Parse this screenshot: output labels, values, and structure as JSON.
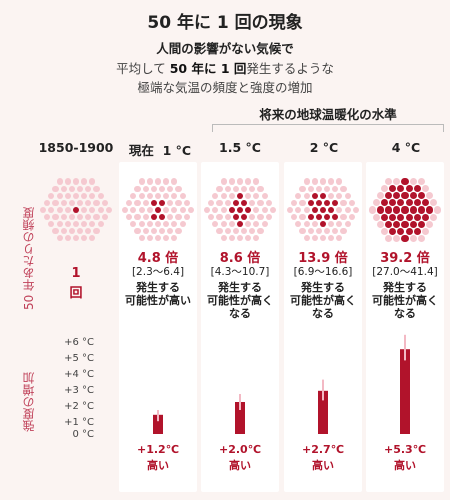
{
  "title": "50 年に 1 回の現象",
  "subtitle": {
    "line1": "人間の影響がない気候で",
    "line2_pre": "平均して ",
    "line2_bold": "50 年に 1 回",
    "line2_post": "発生するような",
    "line3": "極端な気温の頻度と強度の増加"
  },
  "future_label": "将来の地球温暖化の水準",
  "y_label_freq": "50 年あたりの頻度",
  "y_label_int": "強度の増加",
  "colors": {
    "accent": "#b1132b",
    "dot_light": "#f5c9d0",
    "background": "#fbf4f2"
  },
  "chart_data": {
    "type": "bar",
    "categories": [
      "1850-1900",
      "現在 1 °C",
      "1.5 °C",
      "2 °C",
      "4 °C"
    ],
    "frequency": {
      "values": [
        1,
        4.8,
        8.6,
        13.9,
        39.2
      ],
      "labels": [
        "1",
        "4.8 倍",
        "8.6 倍",
        "13.9 倍",
        "39.2 倍"
      ],
      "ranges": [
        "",
        "[2.3～6.4]",
        "[4.3～10.7]",
        "[6.9～16.6]",
        "[27.0～41.4]"
      ],
      "unit_label": "回"
    },
    "likelihood": [
      "",
      "発生する\n可能性が高い",
      "発生する\n可能性が高く\nなる",
      "発生する\n可能性が高く\nなる",
      "発生する\n可能性が高く\nなる"
    ],
    "intensity": {
      "values": [
        0,
        1.2,
        2.0,
        2.7,
        5.3
      ],
      "low": [
        0,
        0.8,
        1.5,
        2.1,
        4.6
      ],
      "high": [
        0,
        1.5,
        2.5,
        3.4,
        6.2
      ],
      "labels": [
        "",
        "+1.2℃",
        "+2.0℃",
        "+2.7℃",
        "+5.3℃"
      ],
      "suffix": "高い",
      "ylim": [
        0,
        6
      ],
      "ticks": [
        "+6 °C",
        "+5 °C",
        "+4 °C",
        "+3 °C",
        "+2 °C",
        "+1 °C",
        "0 °C"
      ]
    }
  },
  "columns": [
    {
      "head_a": "1850-1900",
      "head_b": ""
    },
    {
      "head_a": "現在",
      "head_b": "1 °C"
    },
    {
      "head_a": "1.5 °C",
      "head_b": ""
    },
    {
      "head_a": "2 °C",
      "head_b": ""
    },
    {
      "head_a": "4 °C",
      "head_b": ""
    }
  ]
}
